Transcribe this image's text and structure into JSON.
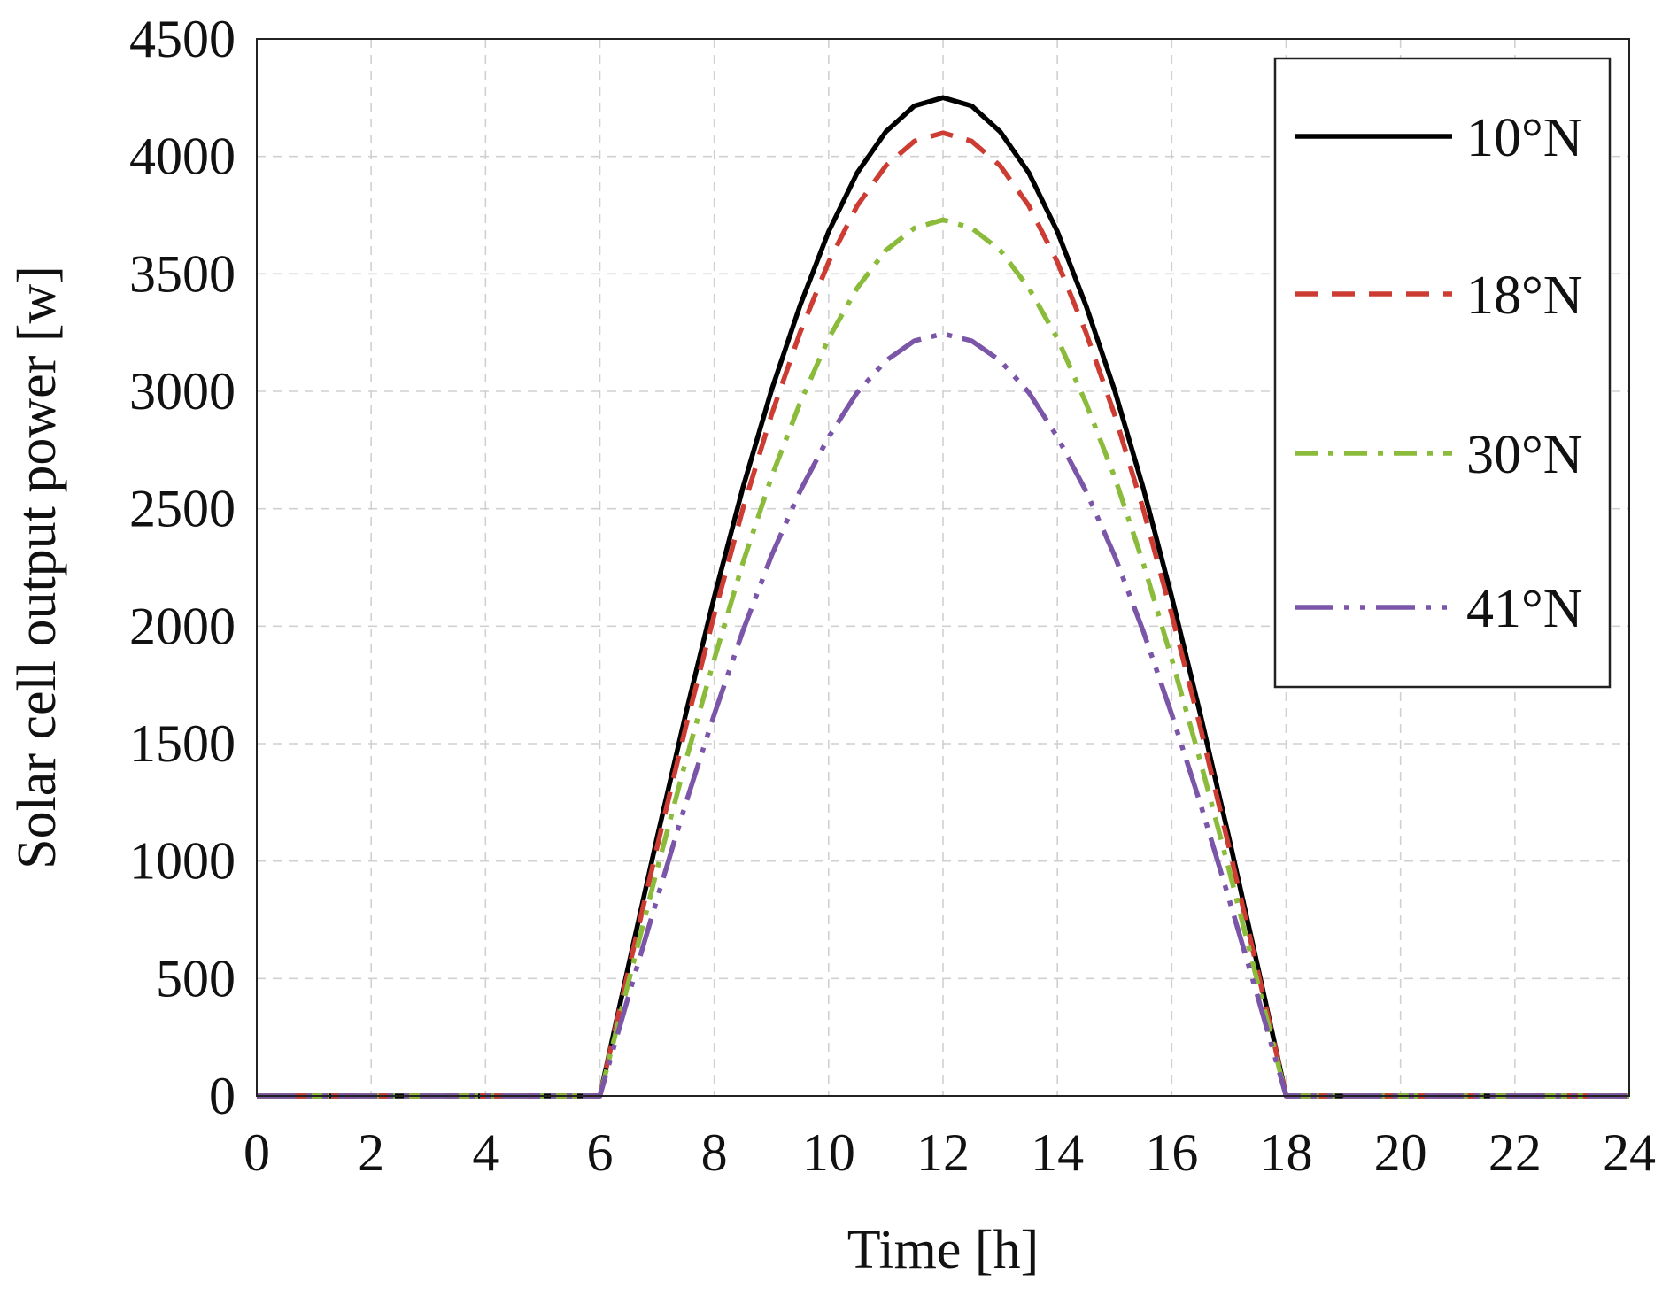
{
  "chart_data": {
    "type": "line",
    "title": "",
    "xlabel": "Time [h]",
    "ylabel": "Solar cell output power [w]",
    "xlim": [
      0,
      24
    ],
    "ylim": [
      0,
      4500
    ],
    "x_ticks": [
      "0",
      "2",
      "4",
      "6",
      "8",
      "10",
      "12",
      "14",
      "16",
      "18",
      "20",
      "22",
      "24"
    ],
    "y_ticks": [
      "0",
      "500",
      "1000",
      "1500",
      "2000",
      "2500",
      "3000",
      "3500",
      "4000",
      "4500"
    ],
    "grid": true,
    "legend_position": "top-right",
    "series": [
      {
        "name": "10°N",
        "color": "#000000",
        "dash": "solid",
        "x": [
          0,
          6,
          6.5,
          7,
          7.5,
          8,
          8.5,
          9,
          9.5,
          10,
          10.5,
          11,
          11.5,
          12,
          12.5,
          13,
          13.5,
          14,
          14.5,
          15,
          15.5,
          16,
          16.5,
          17,
          17.5,
          18,
          24
        ],
        "y": [
          0,
          0,
          555,
          1100,
          1625,
          2125,
          2590,
          3005,
          3365,
          3680,
          3930,
          4105,
          4215,
          4250,
          4215,
          4105,
          3930,
          3680,
          3365,
          3005,
          2590,
          2125,
          1625,
          1100,
          555,
          0,
          0
        ]
      },
      {
        "name": "18°N",
        "color": "#cc3c33",
        "dash": "dashed",
        "x": [
          0,
          6,
          6.5,
          7,
          7.5,
          8,
          8.5,
          9,
          9.5,
          10,
          10.5,
          11,
          11.5,
          12,
          12.5,
          13,
          13.5,
          14,
          14.5,
          15,
          15.5,
          16,
          16.5,
          17,
          17.5,
          18,
          24
        ],
        "y": [
          0,
          0,
          535,
          1060,
          1570,
          2050,
          2500,
          2900,
          3250,
          3550,
          3790,
          3960,
          4065,
          4100,
          4065,
          3960,
          3790,
          3550,
          3250,
          2900,
          2500,
          2050,
          1570,
          1060,
          535,
          0,
          0
        ]
      },
      {
        "name": "30°N",
        "color": "#8bbb3a",
        "dash": "dash-dot",
        "x": [
          0,
          6,
          6.5,
          7,
          7.5,
          8,
          8.5,
          9,
          9.5,
          10,
          10.5,
          11,
          11.5,
          12,
          12.5,
          13,
          13.5,
          14,
          14.5,
          15,
          15.5,
          16,
          16.5,
          17,
          17.5,
          18,
          24
        ],
        "y": [
          0,
          0,
          485,
          965,
          1425,
          1860,
          2270,
          2635,
          2950,
          3225,
          3440,
          3600,
          3695,
          3730,
          3695,
          3600,
          3440,
          3225,
          2950,
          2635,
          2270,
          1860,
          1425,
          965,
          485,
          0,
          0
        ]
      },
      {
        "name": "41°N",
        "color": "#7a55a8",
        "dash": "long-dash-dot-dot",
        "x": [
          0,
          6,
          6.5,
          7,
          7.5,
          8,
          8.5,
          9,
          9.5,
          10,
          10.5,
          11,
          11.5,
          12,
          12.5,
          13,
          13.5,
          14,
          14.5,
          15,
          15.5,
          16,
          16.5,
          17,
          17.5,
          18,
          24
        ],
        "y": [
          0,
          0,
          425,
          840,
          1245,
          1625,
          1980,
          2300,
          2575,
          2805,
          2995,
          3130,
          3215,
          3245,
          3215,
          3130,
          2995,
          2805,
          2575,
          2300,
          1980,
          1625,
          1245,
          840,
          425,
          0,
          0
        ]
      }
    ]
  }
}
